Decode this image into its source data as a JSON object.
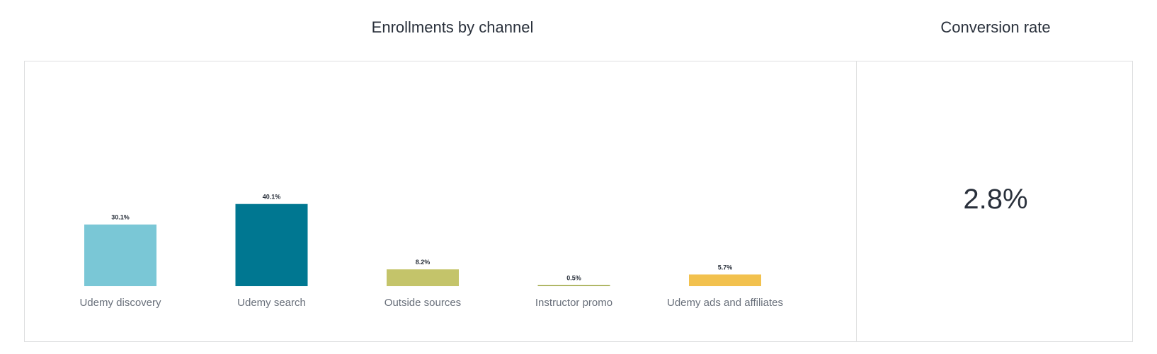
{
  "enrollments": {
    "title": "Enrollments by channel"
  },
  "conversion": {
    "title": "Conversion rate",
    "value": "2.8%"
  },
  "chart_data": {
    "type": "bar",
    "categories": [
      "Udemy discovery",
      "Udemy search",
      "Outside sources",
      "Instructor promo",
      "Udemy ads and affiliates"
    ],
    "values": [
      30.1,
      40.1,
      8.2,
      0.5,
      5.7
    ],
    "data_labels": [
      "30.1%",
      "40.1%",
      "8.2%",
      "0.5%",
      "5.7%"
    ],
    "colors": [
      "#7ac7d6",
      "#007791",
      "#c4c46a",
      "#9aa33a",
      "#f2c14e"
    ],
    "ylim": [
      0,
      100
    ],
    "grid": false,
    "legend": "none"
  }
}
